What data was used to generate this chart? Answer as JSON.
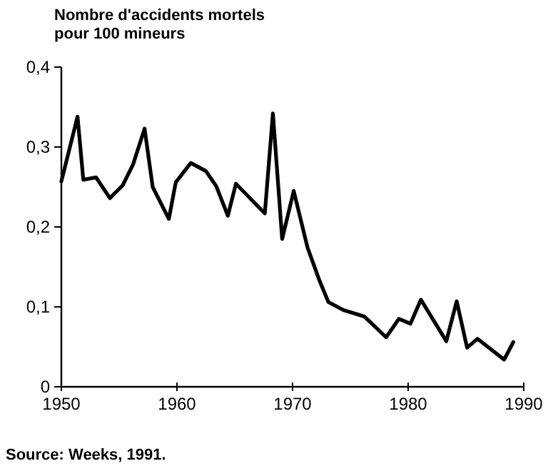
{
  "chart_data": {
    "type": "line",
    "ylabel": "Nombre d'accidents mortels\npour 100 mineurs",
    "annotations": [
      "Source: Weeks, 1991."
    ],
    "x": [
      1950,
      1951.4,
      1951.9,
      1953,
      1954.2,
      1955.3,
      1956.2,
      1957.2,
      1957.9,
      1959.3,
      1959.9,
      1961.2,
      1962.5,
      1963.4,
      1964.4,
      1965.1,
      1967.6,
      1968.3,
      1969.1,
      1970.1,
      1971.3,
      1972.3,
      1973.1,
      1974.4,
      1976.2,
      1978.1,
      1979.2,
      1980.2,
      1981.1,
      1983.3,
      1984.2,
      1985.1,
      1986,
      1988.3,
      1989.1
    ],
    "series": [
      {
        "color": "#000000",
        "values": [
          0.257,
          0.338,
          0.259,
          0.262,
          0.236,
          0.252,
          0.278,
          0.323,
          0.25,
          0.21,
          0.256,
          0.28,
          0.27,
          0.251,
          0.214,
          0.254,
          0.217,
          0.342,
          0.185,
          0.245,
          0.174,
          0.134,
          0.106,
          0.096,
          0.088,
          0.062,
          0.085,
          0.079,
          0.109,
          0.057,
          0.107,
          0.049,
          0.06,
          0.034,
          0.056
        ]
      }
    ],
    "xlim": [
      1950,
      1990
    ],
    "xticks": [
      1950,
      1960,
      1970,
      1980,
      1990
    ],
    "ylim": [
      0,
      0.4
    ],
    "yticks": [
      0,
      {
        "value": 0.1,
        "label": "0,1"
      },
      {
        "value": 0.2,
        "label": "0,2"
      },
      {
        "value": 0.3,
        "label": "0,3"
      },
      {
        "value": 0.4,
        "label": "0,4"
      }
    ],
    "marker": "none",
    "line_style": "solid"
  }
}
